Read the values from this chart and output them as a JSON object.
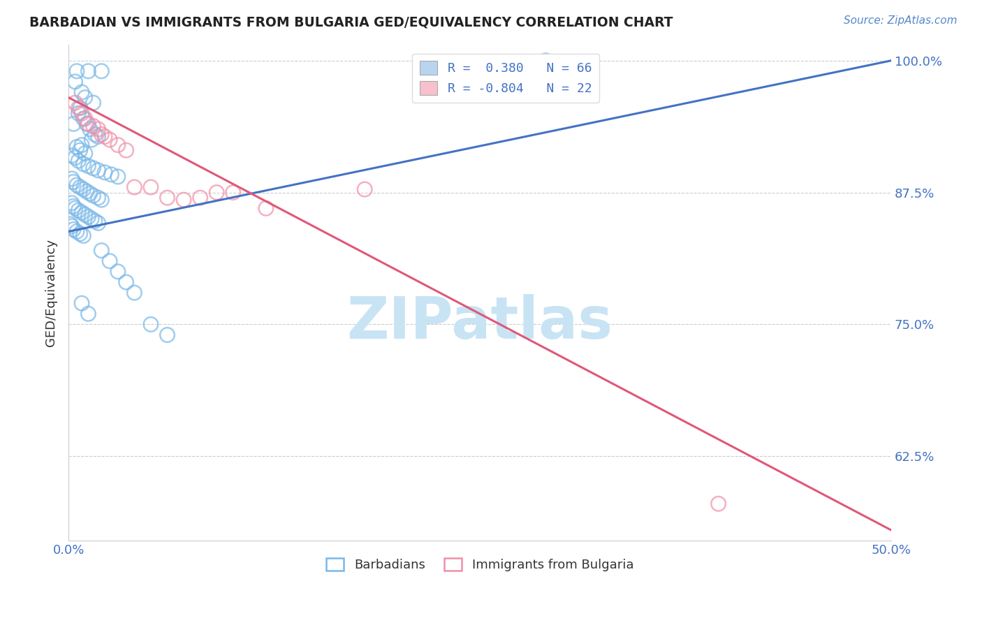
{
  "title": "BARBADIAN VS IMMIGRANTS FROM BULGARIA GED/EQUIVALENCY CORRELATION CHART",
  "source_text": "Source: ZipAtlas.com",
  "ylabel": "GED/Equivalency",
  "xlim": [
    0.0,
    0.5
  ],
  "ylim": [
    0.545,
    1.015
  ],
  "yticks": [
    0.625,
    0.75,
    0.875,
    1.0
  ],
  "yticklabels": [
    "62.5%",
    "75.0%",
    "87.5%",
    "100.0%"
  ],
  "legend_r1": "R =  0.380   N = 66",
  "legend_r2": "R = -0.804   N = 22",
  "legend_color1": "#b8d4f0",
  "legend_color2": "#f8c0cc",
  "blue_dot_color": "#7ab8e8",
  "pink_dot_color": "#f090a8",
  "blue_line_color": "#4472c4",
  "pink_line_color": "#e05878",
  "watermark_text": "ZIPatlas",
  "watermark_color": "#c8e4f4",
  "blue_line_x": [
    0.0,
    0.5
  ],
  "blue_line_y": [
    0.838,
    1.0
  ],
  "pink_line_x": [
    0.0,
    0.5
  ],
  "pink_line_y": [
    0.965,
    0.555
  ],
  "blue_scatter_x": [
    0.005,
    0.012,
    0.02,
    0.004,
    0.008,
    0.01,
    0.015,
    0.007,
    0.006,
    0.009,
    0.003,
    0.011,
    0.013,
    0.016,
    0.018,
    0.014,
    0.008,
    0.005,
    0.007,
    0.01,
    0.002,
    0.004,
    0.006,
    0.009,
    0.012,
    0.015,
    0.018,
    0.022,
    0.026,
    0.03,
    0.002,
    0.003,
    0.005,
    0.007,
    0.009,
    0.011,
    0.013,
    0.015,
    0.018,
    0.02,
    0.002,
    0.003,
    0.004,
    0.006,
    0.008,
    0.01,
    0.012,
    0.014,
    0.016,
    0.018,
    0.001,
    0.002,
    0.003,
    0.005,
    0.007,
    0.009,
    0.02,
    0.025,
    0.03,
    0.035,
    0.04,
    0.008,
    0.012,
    0.05,
    0.06,
    0.29
  ],
  "blue_scatter_y": [
    0.99,
    0.99,
    0.99,
    0.98,
    0.97,
    0.965,
    0.96,
    0.955,
    0.95,
    0.945,
    0.94,
    0.94,
    0.935,
    0.93,
    0.928,
    0.925,
    0.92,
    0.918,
    0.915,
    0.912,
    0.91,
    0.908,
    0.905,
    0.902,
    0.9,
    0.898,
    0.896,
    0.894,
    0.892,
    0.89,
    0.888,
    0.885,
    0.882,
    0.88,
    0.878,
    0.876,
    0.874,
    0.872,
    0.87,
    0.868,
    0.865,
    0.862,
    0.86,
    0.858,
    0.856,
    0.854,
    0.852,
    0.85,
    0.848,
    0.846,
    0.845,
    0.843,
    0.84,
    0.838,
    0.836,
    0.834,
    0.82,
    0.81,
    0.8,
    0.79,
    0.78,
    0.77,
    0.76,
    0.75,
    0.74,
    1.0
  ],
  "pink_scatter_x": [
    0.004,
    0.006,
    0.008,
    0.01,
    0.012,
    0.015,
    0.018,
    0.02,
    0.022,
    0.025,
    0.03,
    0.035,
    0.04,
    0.05,
    0.06,
    0.07,
    0.08,
    0.09,
    0.1,
    0.12,
    0.395,
    0.18
  ],
  "pink_scatter_y": [
    0.96,
    0.955,
    0.95,
    0.945,
    0.94,
    0.938,
    0.935,
    0.93,
    0.928,
    0.925,
    0.92,
    0.915,
    0.88,
    0.88,
    0.87,
    0.868,
    0.87,
    0.875,
    0.875,
    0.86,
    0.58,
    0.878
  ]
}
